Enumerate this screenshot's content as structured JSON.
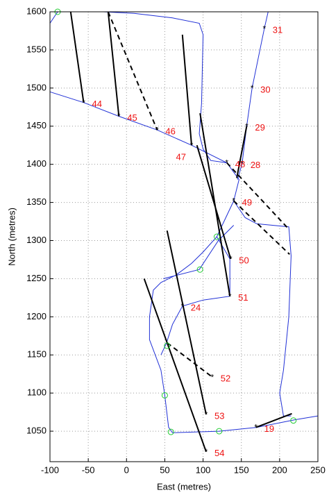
{
  "chart_data": {
    "type": "scatter",
    "xlabel": "East (metres)",
    "ylabel": "North (metres)",
    "xlim": [
      -100,
      250
    ],
    "ylim": [
      1010,
      1600
    ],
    "xticks": [
      -100,
      -50,
      0,
      50,
      100,
      150,
      200,
      250
    ],
    "yticks": [
      1050,
      1100,
      1150,
      1200,
      1250,
      1300,
      1350,
      1400,
      1450,
      1500,
      1550,
      1600
    ],
    "grid": true,
    "trajectory": {
      "color": "#1f2fd6",
      "x": [
        -100,
        -56,
        -10,
        40,
        85,
        131,
        147,
        140,
        125,
        118,
        100,
        85,
        65,
        45,
        35,
        30,
        30,
        45,
        50,
        55,
        60,
        121,
        170,
        220,
        250,
        null,
        -100,
        -90,
        null,
        -30,
        10,
        60,
        95,
        100,
        98,
        95,
        100,
        110,
        131,
        null,
        185,
        180,
        164,
        157,
        151,
        145,
        null,
        140,
        155,
        170,
        212,
        215,
        212,
        205,
        200,
        205,
        215,
        null,
        118,
        135,
        135,
        100,
        73,
        60,
        52,
        45,
        null,
        48,
        95,
        120,
        140
      ],
      "y": [
        1495,
        1481,
        1463,
        1445,
        1425,
        1402,
        1380,
        1352,
        1320,
        1305,
        1285,
        1270,
        1255,
        1245,
        1235,
        1200,
        1170,
        1130,
        1097,
        1055,
        1048,
        1050,
        1055,
        1065,
        1070,
        null,
        1585,
        1600,
        null,
        1600,
        1598,
        1592,
        1585,
        1570,
        1480,
        1440,
        1420,
        1405,
        1402,
        null,
        1600,
        1578,
        1500,
        1450,
        1401,
        1380,
        null,
        1352,
        1330,
        1322,
        1318,
        1280,
        1200,
        1130,
        1100,
        1070,
        1070,
        null,
        1305,
        1276,
        1227,
        1222,
        1214,
        1190,
        1165,
        1150,
        null,
        1250,
        1262,
        1300,
        1320
      ]
    },
    "solid_lines": {
      "color": "#000000",
      "x": [
        -73,
        -56,
        null,
        -24,
        -10,
        null,
        73,
        85,
        null,
        96,
        135,
        null,
        92,
        136,
        null,
        53,
        104,
        null,
        23,
        104,
        null,
        169,
        216,
        null,
        144,
        157
      ],
      "y": [
        1600,
        1481,
        null,
        1600,
        1463,
        null,
        1570,
        1425,
        null,
        1467,
        1227,
        null,
        1425,
        1276,
        null,
        1313,
        1072,
        null,
        1250,
        1023,
        null,
        1055,
        1073,
        null,
        1382,
        1450
      ]
    },
    "dashed_lines": {
      "color": "#000000",
      "x": [
        -24,
        40,
        null,
        131,
        211,
        null,
        140,
        213,
        null,
        53,
        112
      ],
      "y": [
        1600,
        1445,
        null,
        1402,
        1316,
        null,
        1352,
        1282,
        null,
        1166,
        1121
      ]
    },
    "markers": {
      "color": "#22cc33",
      "x": [
        -90,
        118,
        96,
        53,
        50,
        58,
        121,
        218
      ],
      "y": [
        1600,
        1305,
        1262,
        1162,
        1097,
        1049,
        1050,
        1064
      ]
    },
    "points": {
      "color": "#ee1111",
      "labels": [
        "31",
        "30",
        "29",
        "28",
        "44",
        "45",
        "46",
        "47",
        "48",
        "49",
        "50",
        "51",
        "24",
        "52",
        "53",
        "54",
        "19"
      ],
      "x": [
        180,
        164,
        157,
        151,
        -56,
        -10,
        40,
        85,
        131,
        140,
        136,
        135,
        73,
        112,
        104,
        104,
        169
      ],
      "y": [
        1578,
        1500,
        1450,
        1401,
        1481,
        1463,
        1445,
        1425,
        1402,
        1352,
        1276,
        1227,
        1214,
        1121,
        1072,
        1023,
        1055
      ]
    }
  }
}
